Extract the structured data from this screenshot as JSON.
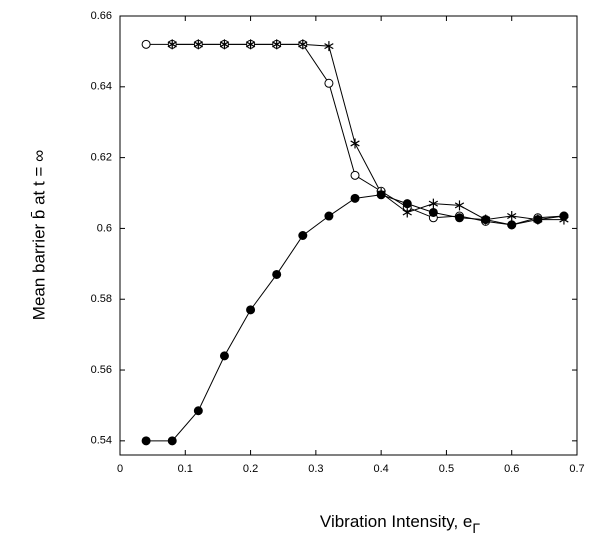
{
  "chart_data": {
    "type": "line",
    "y_label": "Mean barrier b̄ at  t = ∞",
    "x_label": "Vibration Intensity, e",
    "x_label_subscript": "Γ",
    "x": [
      0.04,
      0.08,
      0.12,
      0.16,
      0.2,
      0.24,
      0.28,
      0.32,
      0.36,
      0.4,
      0.44,
      0.48,
      0.52,
      0.56,
      0.6,
      0.64,
      0.68
    ],
    "series": [
      {
        "marker": "open-circle",
        "color": "#000000",
        "values": [
          0.652,
          0.652,
          0.652,
          0.652,
          0.652,
          0.652,
          0.652,
          0.641,
          0.615,
          0.6105,
          0.606,
          0.603,
          0.6035,
          0.602,
          0.601,
          0.603,
          0.6035
        ]
      },
      {
        "marker": "asterisk",
        "color": "#000000",
        "values": [
          null,
          0.652,
          0.652,
          0.652,
          0.652,
          0.652,
          0.652,
          0.6515,
          0.624,
          0.61,
          0.6045,
          0.607,
          0.6065,
          0.6025,
          0.6035,
          0.6025,
          0.6025
        ]
      },
      {
        "marker": "filled-circle",
        "color": "#000000",
        "values": [
          0.54,
          0.54,
          0.5485,
          0.564,
          0.577,
          0.587,
          0.598,
          0.6035,
          0.6085,
          0.6095,
          0.607,
          0.6045,
          0.603,
          0.6025,
          0.601,
          0.6025,
          0.6035
        ]
      }
    ],
    "xlim": [
      0,
      0.7
    ],
    "xticks": [
      0,
      0.1,
      0.2,
      0.3,
      0.4,
      0.5,
      0.6,
      0.7
    ],
    "ylim": [
      0.536,
      0.66
    ],
    "yticks": [
      0.54,
      0.56,
      0.58,
      0.6,
      0.62,
      0.64,
      0.66
    ],
    "grid": false
  }
}
